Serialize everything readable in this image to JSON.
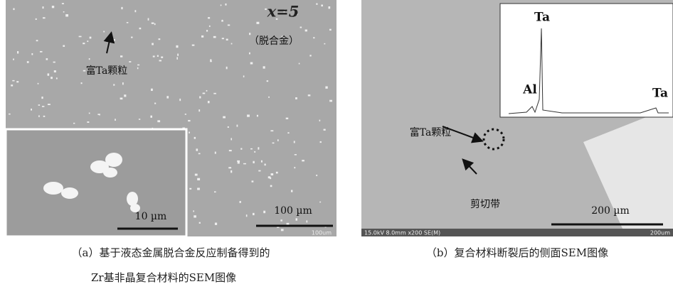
{
  "panels": [
    {
      "label_x": "x=5",
      "label_dealloy": "（脱合金）",
      "annotation": "富Ta颗粒",
      "inset_scale": "10 µm",
      "scale_bar": "100 µm",
      "instrument_scale": "100um",
      "caption": [
        "（a）基于液态金属脱合金反应制备得到的",
        "Zr基非晶复合材料的SEM图像"
      ]
    },
    {
      "eds_peaks": [
        "Ta",
        "Al",
        "Ta"
      ],
      "annotation": "富Ta颗粒",
      "shear_band": "剪切带",
      "scale_bar": "200 µm",
      "instrument_info": "15.0kV 8.0mm x200 SE(M)",
      "instrument_scale": "200um",
      "caption": [
        "（b）复合材料断裂后的侧面SEM图像"
      ]
    }
  ]
}
